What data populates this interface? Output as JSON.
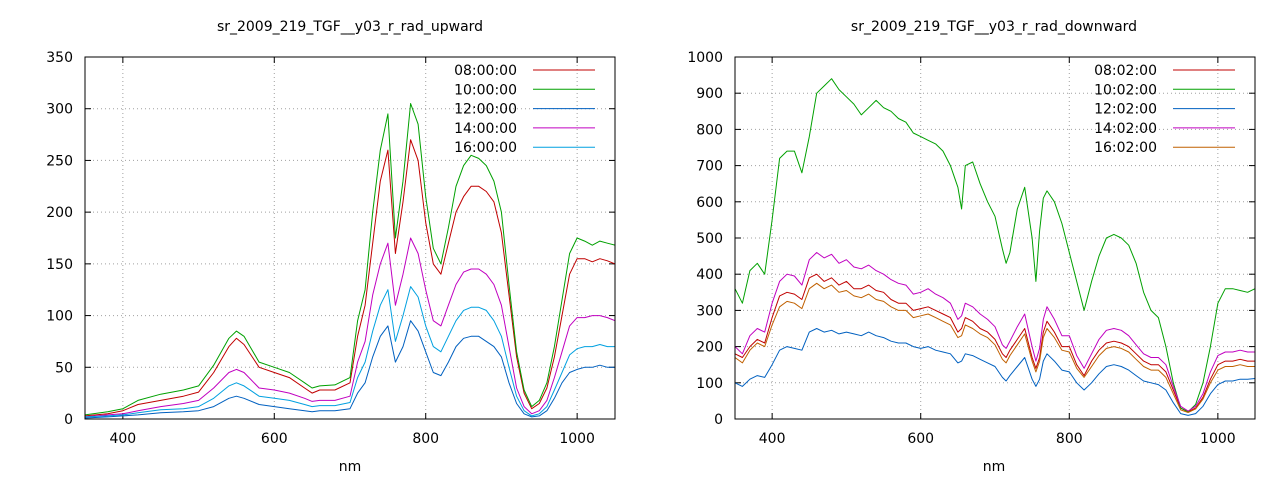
{
  "chart_data": [
    {
      "type": "line",
      "title": "sr_2009_219_TGF__y03_r_rad_upward",
      "xlabel": "nm",
      "ylabel": "",
      "xlim": [
        350,
        1050
      ],
      "ylim": [
        0,
        350
      ],
      "xticks": [
        400,
        600,
        800,
        1000
      ],
      "yticks": [
        0,
        50,
        100,
        150,
        200,
        250,
        300,
        350
      ],
      "grid": true,
      "legend": "top-right",
      "x": [
        350,
        380,
        400,
        420,
        450,
        480,
        500,
        520,
        540,
        550,
        560,
        580,
        600,
        620,
        640,
        650,
        660,
        680,
        700,
        710,
        720,
        730,
        740,
        750,
        760,
        770,
        780,
        790,
        800,
        810,
        820,
        830,
        840,
        850,
        860,
        870,
        880,
        890,
        900,
        910,
        920,
        930,
        940,
        950,
        960,
        970,
        980,
        990,
        1000,
        1010,
        1020,
        1030,
        1040,
        1050
      ],
      "series": [
        {
          "name": "08:00:00",
          "color": "#c00000",
          "values": [
            3,
            5,
            8,
            14,
            18,
            22,
            26,
            45,
            70,
            78,
            72,
            50,
            45,
            40,
            30,
            25,
            28,
            28,
            35,
            80,
            110,
            170,
            230,
            260,
            160,
            210,
            270,
            250,
            190,
            150,
            140,
            170,
            200,
            215,
            225,
            225,
            220,
            210,
            180,
            120,
            60,
            25,
            10,
            15,
            30,
            60,
            100,
            140,
            155,
            155,
            152,
            155,
            153,
            150
          ]
        },
        {
          "name": "10:00:00",
          "color": "#00a000",
          "values": [
            4,
            7,
            10,
            18,
            24,
            28,
            32,
            52,
            78,
            85,
            80,
            55,
            50,
            45,
            35,
            30,
            32,
            33,
            40,
            95,
            125,
            200,
            260,
            295,
            175,
            230,
            305,
            285,
            215,
            165,
            150,
            185,
            225,
            245,
            255,
            252,
            245,
            230,
            200,
            130,
            65,
            28,
            12,
            18,
            35,
            70,
            115,
            160,
            175,
            172,
            168,
            172,
            170,
            168
          ]
        },
        {
          "name": "12:00:00",
          "color": "#0060c0",
          "values": [
            1,
            2,
            3,
            4,
            6,
            7,
            8,
            12,
            20,
            22,
            20,
            14,
            12,
            10,
            8,
            7,
            8,
            8,
            10,
            25,
            35,
            60,
            80,
            90,
            55,
            70,
            95,
            85,
            65,
            45,
            42,
            55,
            70,
            78,
            80,
            80,
            75,
            70,
            60,
            35,
            15,
            5,
            2,
            3,
            8,
            20,
            35,
            45,
            48,
            50,
            50,
            52,
            50,
            50
          ]
        },
        {
          "name": "14:00:00",
          "color": "#c000c0",
          "values": [
            2,
            4,
            5,
            8,
            12,
            15,
            18,
            30,
            45,
            48,
            45,
            30,
            28,
            25,
            20,
            17,
            18,
            18,
            22,
            55,
            75,
            120,
            150,
            170,
            110,
            140,
            175,
            160,
            125,
            95,
            90,
            110,
            130,
            142,
            145,
            145,
            140,
            130,
            110,
            70,
            30,
            12,
            5,
            8,
            18,
            40,
            65,
            90,
            98,
            98,
            100,
            100,
            98,
            95
          ]
        },
        {
          "name": "16:00:00",
          "color": "#00a0e0",
          "values": [
            2,
            3,
            4,
            6,
            9,
            10,
            12,
            20,
            32,
            35,
            32,
            22,
            20,
            18,
            14,
            12,
            13,
            13,
            16,
            40,
            55,
            85,
            110,
            125,
            75,
            100,
            128,
            118,
            90,
            70,
            65,
            80,
            95,
            105,
            108,
            108,
            105,
            95,
            80,
            50,
            22,
            8,
            3,
            5,
            12,
            28,
            45,
            62,
            68,
            70,
            70,
            72,
            70,
            70
          ]
        }
      ]
    },
    {
      "type": "line",
      "title": "sr_2009_219_TGF__y03_r_rad_downward",
      "xlabel": "nm",
      "ylabel": "",
      "xlim": [
        350,
        1050
      ],
      "ylim": [
        0,
        1000
      ],
      "xticks": [
        400,
        600,
        800,
        1000
      ],
      "yticks": [
        0,
        100,
        200,
        300,
        400,
        500,
        600,
        700,
        800,
        900,
        1000
      ],
      "grid": true,
      "legend": "top-right",
      "x": [
        350,
        360,
        370,
        380,
        390,
        400,
        410,
        420,
        430,
        440,
        450,
        460,
        470,
        480,
        490,
        500,
        510,
        520,
        530,
        540,
        550,
        560,
        570,
        580,
        590,
        600,
        610,
        620,
        630,
        640,
        650,
        655,
        660,
        670,
        680,
        690,
        700,
        710,
        715,
        720,
        730,
        740,
        750,
        755,
        760,
        765,
        770,
        780,
        790,
        800,
        810,
        820,
        830,
        840,
        850,
        860,
        870,
        880,
        890,
        900,
        910,
        920,
        930,
        940,
        950,
        960,
        970,
        980,
        990,
        1000,
        1010,
        1020,
        1030,
        1040,
        1050
      ],
      "series": [
        {
          "name": "08:02:00",
          "color": "#c00000",
          "values": [
            180,
            170,
            200,
            220,
            210,
            280,
            340,
            350,
            345,
            330,
            390,
            400,
            380,
            390,
            370,
            380,
            360,
            360,
            370,
            355,
            350,
            330,
            320,
            320,
            300,
            305,
            310,
            300,
            290,
            280,
            240,
            250,
            280,
            270,
            250,
            240,
            220,
            180,
            170,
            190,
            220,
            250,
            170,
            140,
            170,
            240,
            270,
            240,
            200,
            200,
            150,
            120,
            160,
            190,
            210,
            215,
            210,
            200,
            180,
            160,
            150,
            150,
            130,
            80,
            30,
            20,
            30,
            60,
            110,
            150,
            160,
            160,
            165,
            160,
            160
          ]
        },
        {
          "name": "10:02:00",
          "color": "#00a000",
          "values": [
            360,
            320,
            410,
            430,
            400,
            550,
            720,
            740,
            740,
            680,
            780,
            900,
            920,
            940,
            910,
            890,
            870,
            840,
            860,
            880,
            860,
            850,
            830,
            820,
            790,
            780,
            770,
            760,
            740,
            700,
            640,
            580,
            700,
            710,
            650,
            600,
            560,
            470,
            430,
            460,
            580,
            640,
            500,
            380,
            520,
            610,
            630,
            600,
            540,
            460,
            380,
            300,
            380,
            450,
            500,
            510,
            500,
            480,
            430,
            350,
            300,
            280,
            200,
            100,
            30,
            20,
            40,
            100,
            200,
            320,
            360,
            360,
            355,
            350,
            360
          ]
        },
        {
          "name": "12:02:00",
          "color": "#0060c0",
          "values": [
            100,
            90,
            110,
            120,
            115,
            150,
            190,
            200,
            195,
            190,
            240,
            250,
            240,
            245,
            235,
            240,
            235,
            230,
            240,
            230,
            225,
            215,
            210,
            210,
            200,
            195,
            200,
            190,
            185,
            180,
            155,
            160,
            180,
            175,
            165,
            155,
            145,
            115,
            105,
            120,
            145,
            170,
            110,
            90,
            110,
            160,
            180,
            160,
            135,
            130,
            100,
            80,
            100,
            125,
            145,
            150,
            145,
            135,
            120,
            105,
            100,
            95,
            80,
            45,
            15,
            10,
            15,
            35,
            70,
            95,
            105,
            105,
            110,
            110,
            112
          ]
        },
        {
          "name": "14:02:00",
          "color": "#c000c0",
          "values": [
            200,
            180,
            230,
            250,
            240,
            320,
            380,
            400,
            395,
            370,
            440,
            460,
            445,
            455,
            430,
            440,
            420,
            415,
            425,
            410,
            400,
            385,
            375,
            370,
            345,
            350,
            360,
            345,
            335,
            320,
            275,
            285,
            320,
            310,
            290,
            275,
            255,
            205,
            195,
            215,
            255,
            290,
            200,
            160,
            195,
            275,
            310,
            275,
            230,
            230,
            175,
            140,
            180,
            220,
            245,
            250,
            245,
            230,
            205,
            180,
            170,
            170,
            150,
            90,
            35,
            22,
            35,
            70,
            130,
            175,
            185,
            185,
            190,
            185,
            185
          ]
        },
        {
          "name": "16:02:00",
          "color": "#c06000",
          "values": [
            170,
            155,
            190,
            210,
            200,
            260,
            310,
            325,
            320,
            305,
            360,
            375,
            360,
            370,
            350,
            355,
            340,
            335,
            345,
            330,
            325,
            310,
            300,
            300,
            280,
            285,
            290,
            280,
            270,
            260,
            225,
            230,
            260,
            250,
            235,
            225,
            205,
            165,
            155,
            175,
            205,
            235,
            160,
            130,
            160,
            225,
            250,
            225,
            190,
            185,
            140,
            115,
            145,
            175,
            195,
            200,
            195,
            185,
            165,
            145,
            135,
            135,
            115,
            70,
            25,
            18,
            28,
            55,
            100,
            135,
            145,
            145,
            150,
            145,
            145
          ]
        }
      ]
    }
  ]
}
